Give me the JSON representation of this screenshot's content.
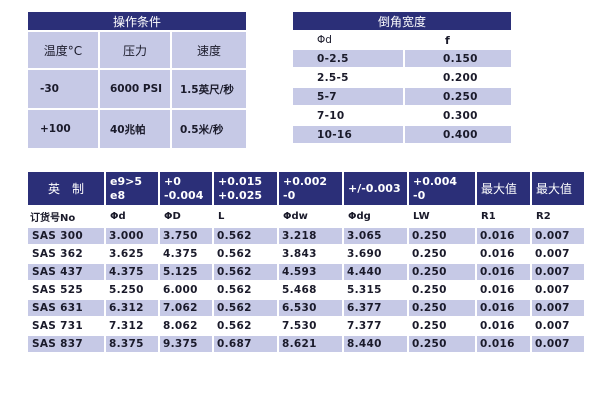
{
  "conditions": {
    "title": "操作条件",
    "headers": [
      "温度°C",
      "压力",
      "速度"
    ],
    "rows": [
      [
        "-30",
        "6000 PSI",
        "1.5英尺/秒"
      ],
      [
        "+100",
        "40兆帕",
        "0.5米/秒"
      ]
    ]
  },
  "chamfer": {
    "title": "倒角宽度",
    "headers": [
      "Φd",
      "f"
    ],
    "rows": [
      [
        "0-2.5",
        "0.150"
      ],
      [
        "2.5-5",
        "0.200"
      ],
      [
        "5-7",
        "0.250"
      ],
      [
        "7-10",
        "0.300"
      ],
      [
        "10-16",
        "0.400"
      ]
    ]
  },
  "main": {
    "header_row1": [
      "英　制",
      "e9>5\ne8",
      "+0\n-0.004",
      "+0.015\n+0.025",
      "+0.002\n-0",
      "+/-0.003",
      "+0.004\n-0",
      "最大值",
      "最大值"
    ],
    "header_row2": [
      "订货号No",
      "Φd",
      "ΦD",
      "L",
      "Φdw",
      "Φdg",
      "LW",
      "R1",
      "R2"
    ],
    "rows": [
      [
        "SAS 300",
        "3.000",
        "3.750",
        "0.562",
        "3.218",
        "3.065",
        "0.250",
        "0.016",
        "0.007"
      ],
      [
        "SAS 362",
        "3.625",
        "4.375",
        "0.562",
        "3.843",
        "3.690",
        "0.250",
        "0.016",
        "0.007"
      ],
      [
        "SAS 437",
        "4.375",
        "5.125",
        "0.562",
        "4.593",
        "4.440",
        "0.250",
        "0.016",
        "0.007"
      ],
      [
        "SAS 525",
        "5.250",
        "6.000",
        "0.562",
        "5.468",
        "5.315",
        "0.250",
        "0.016",
        "0.007"
      ],
      [
        "SAS 631",
        "6.312",
        "7.062",
        "0.562",
        "6.530",
        "6.377",
        "0.250",
        "0.016",
        "0.007"
      ],
      [
        "SAS 731",
        "7.312",
        "8.062",
        "0.562",
        "7.530",
        "7.377",
        "0.250",
        "0.016",
        "0.007"
      ],
      [
        "SAS 837",
        "8.375",
        "9.375",
        "0.687",
        "8.621",
        "8.440",
        "0.250",
        "0.016",
        "0.007"
      ]
    ]
  },
  "colors": {
    "navy": "#2b2f78",
    "lavender": "#c6c9e6",
    "text": "#1a1a2a"
  }
}
